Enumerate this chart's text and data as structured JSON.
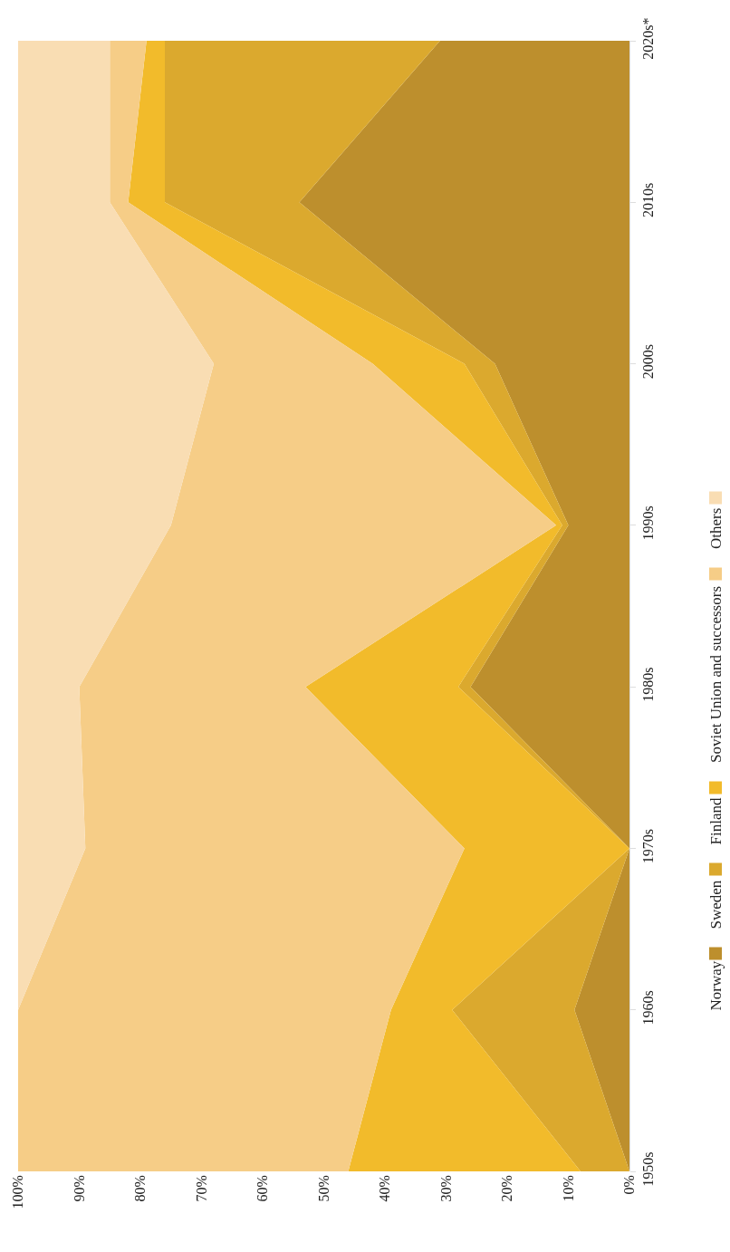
{
  "chart_data": {
    "type": "area",
    "stacked": true,
    "orientation": "horizontal",
    "grid": false,
    "legend": "right",
    "categories": [
      "2020s*",
      "2010s",
      "2000s",
      "1990s",
      "1980s",
      "1970s",
      "1960s",
      "1950s"
    ],
    "series": [
      {
        "name": "Norway",
        "color": "#bd8f2d",
        "values": [
          31,
          54,
          22,
          10,
          26,
          0,
          9,
          0
        ]
      },
      {
        "name": "Sweden",
        "color": "#dba92e",
        "values": [
          45,
          22,
          5,
          1,
          2,
          0,
          20,
          8
        ]
      },
      {
        "name": "Finland",
        "color": "#f2bb2b",
        "values": [
          3,
          6,
          15,
          1,
          25,
          27,
          10,
          38
        ]
      },
      {
        "name": "Soviet Union and successors",
        "color": "#f6cd87",
        "values": [
          6,
          3,
          26,
          63,
          37,
          62,
          61,
          54
        ]
      },
      {
        "name": "Others",
        "color": "#f9ddb3",
        "values": [
          15,
          15,
          32,
          25,
          10,
          11,
          0,
          0
        ]
      }
    ],
    "xlim": [
      100,
      0
    ],
    "xticks": [
      {
        "value": 0,
        "label": "0%"
      },
      {
        "value": 10,
        "label": "10%"
      },
      {
        "value": 20,
        "label": "20%"
      },
      {
        "value": 30,
        "label": "30%"
      },
      {
        "value": 40,
        "label": "40%"
      },
      {
        "value": 50,
        "label": "50%"
      },
      {
        "value": 60,
        "label": "60%"
      },
      {
        "value": 70,
        "label": "70%"
      },
      {
        "value": 80,
        "label": "80%"
      },
      {
        "value": 90,
        "label": "90%"
      },
      {
        "value": 100,
        "label": "100%"
      }
    ]
  }
}
